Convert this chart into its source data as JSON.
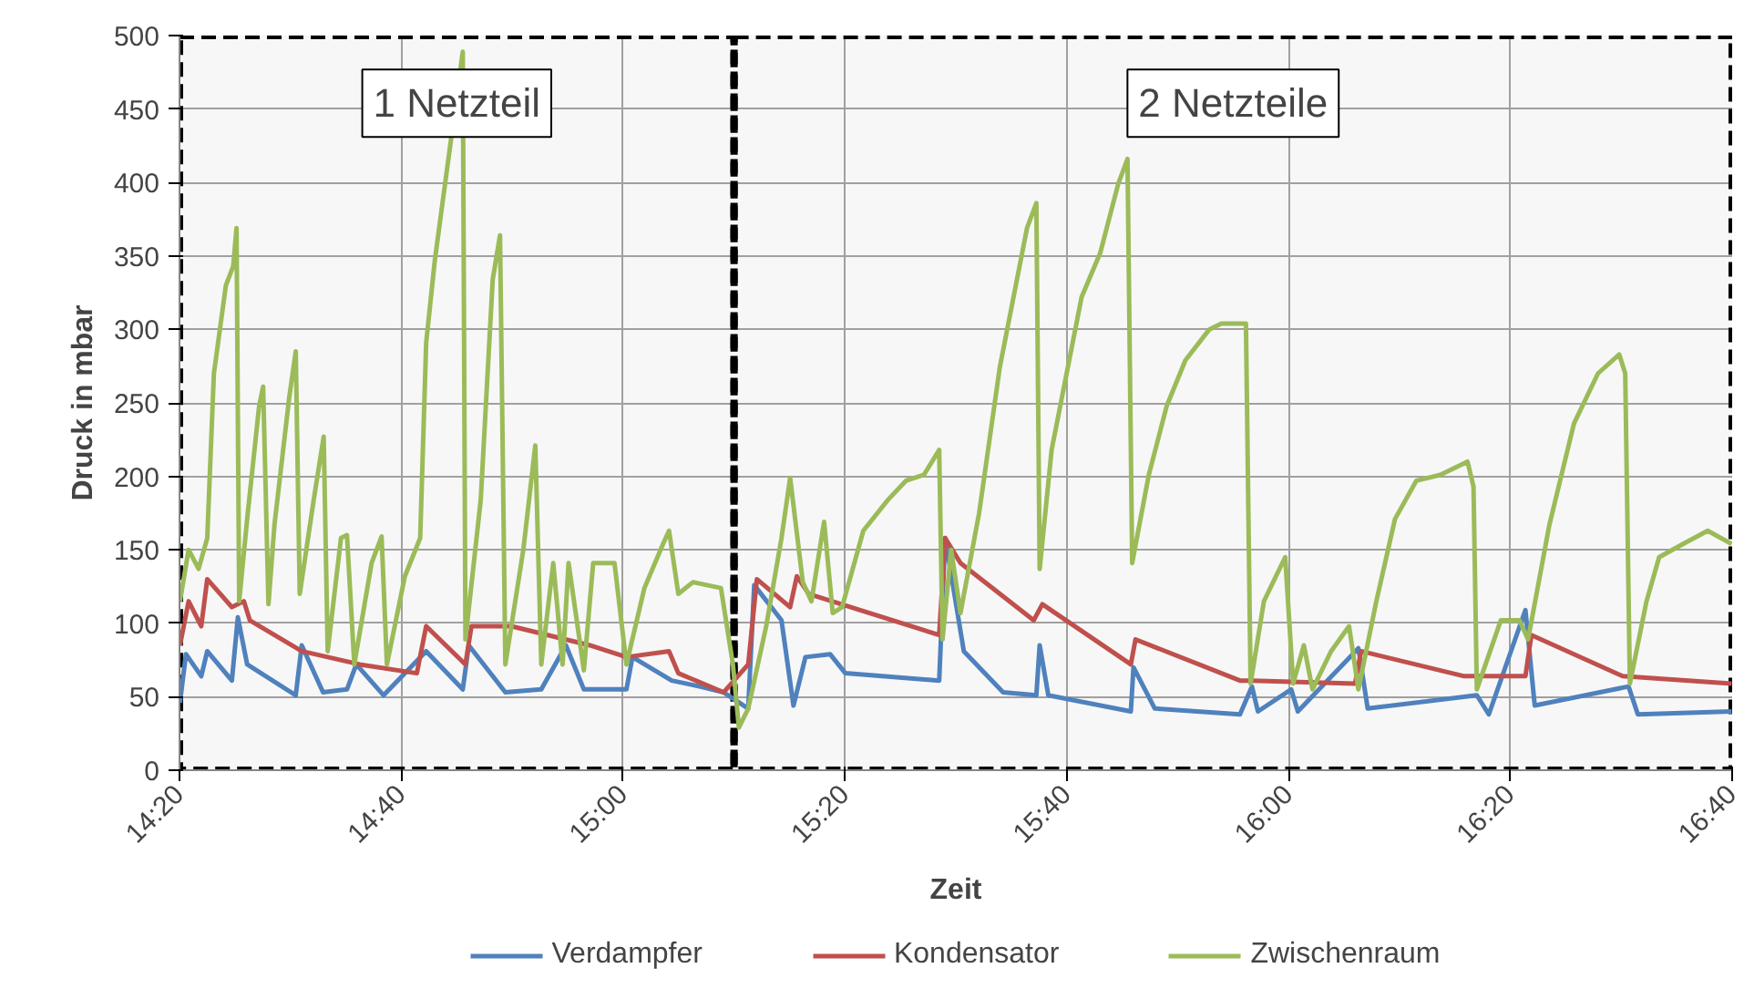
{
  "chart_data": {
    "type": "line",
    "xlabel": "Zeit",
    "ylabel": "Druck in mbar",
    "xlim": [
      14.3333,
      16.6667
    ],
    "xticks": [
      {
        "value": 14.3333,
        "label": "14:20"
      },
      {
        "value": 14.6667,
        "label": "14:40"
      },
      {
        "value": 15,
        "label": "15:00"
      },
      {
        "value": 15.3333,
        "label": "15:20"
      },
      {
        "value": 15.6667,
        "label": "15:40"
      },
      {
        "value": 16,
        "label": "16:00"
      },
      {
        "value": 16.3333,
        "label": "16:20"
      },
      {
        "value": 16.6667,
        "label": "16:40"
      }
    ],
    "ylim": [
      0,
      500
    ],
    "yticks": [
      0,
      50,
      100,
      150,
      200,
      250,
      300,
      350,
      400,
      450,
      500
    ],
    "grid": true,
    "legend": "bottom",
    "line_style": "solid",
    "bands": [
      {
        "axis": "x",
        "from": 14.3333,
        "to": 15.1667,
        "label": "1 Netzteil",
        "color": "#000000"
      },
      {
        "axis": "x",
        "from": 15.1667,
        "to": 16.6667,
        "label": "2 Netzteile",
        "color": "#000000"
      }
    ],
    "series": [
      {
        "name": "Verdampfer",
        "color": "#4f81bd",
        "x": [
          14.334,
          14.343,
          14.366,
          14.375,
          14.412,
          14.421,
          14.435,
          14.508,
          14.517,
          14.549,
          14.585,
          14.599,
          14.64,
          14.704,
          14.759,
          14.768,
          14.823,
          14.877,
          14.914,
          14.941,
          15.005,
          15.014,
          15.073,
          15.115,
          15.151,
          15.188,
          15.197,
          15.238,
          15.256,
          15.274,
          15.311,
          15.334,
          15.475,
          15.484,
          15.512,
          15.571,
          15.621,
          15.626,
          15.639,
          15.763,
          15.767,
          15.799,
          15.927,
          15.945,
          15.954,
          16.004,
          16.014,
          16.105,
          16.119,
          16.283,
          16.301,
          16.356,
          16.37,
          16.511,
          16.525,
          16.666
        ],
        "values": [
          46,
          79,
          64,
          81,
          61,
          104,
          72,
          51,
          85,
          53,
          55,
          72,
          51,
          81,
          55,
          85,
          53,
          55,
          85,
          55,
          55,
          77,
          61,
          57,
          53,
          42,
          126,
          102,
          44,
          77,
          79,
          66,
          61,
          158,
          81,
          53,
          51,
          85,
          51,
          40,
          70,
          42,
          38,
          57,
          40,
          55,
          40,
          83,
          42,
          51,
          38,
          109,
          44,
          57,
          38,
          40
        ]
      },
      {
        "name": "Kondensator",
        "color": "#c0504d",
        "x": [
          14.334,
          14.347,
          14.366,
          14.375,
          14.412,
          14.43,
          14.439,
          14.517,
          14.604,
          14.69,
          14.704,
          14.763,
          14.772,
          14.832,
          14.95,
          15.005,
          15.069,
          15.083,
          15.151,
          15.188,
          15.201,
          15.251,
          15.261,
          15.279,
          15.475,
          15.484,
          15.507,
          15.617,
          15.63,
          15.763,
          15.77,
          15.927,
          15.945,
          16.1,
          16.109,
          16.264,
          16.356,
          16.365,
          16.502,
          16.666
        ],
        "values": [
          85,
          115,
          98,
          130,
          111,
          115,
          102,
          81,
          72,
          66,
          98,
          72,
          98,
          98,
          85,
          77,
          81,
          66,
          53,
          72,
          130,
          111,
          132,
          120,
          92,
          158,
          141,
          102,
          113,
          72,
          89,
          61,
          61,
          59,
          81,
          64,
          64,
          92,
          64,
          59
        ]
      },
      {
        "name": "Zwischenraum",
        "color": "#9bbb59",
        "x": [
          14.334,
          14.347,
          14.362,
          14.375,
          14.385,
          14.403,
          14.414,
          14.419,
          14.423,
          14.435,
          14.453,
          14.459,
          14.467,
          14.476,
          14.498,
          14.508,
          14.514,
          14.535,
          14.55,
          14.556,
          14.576,
          14.585,
          14.596,
          14.622,
          14.637,
          14.645,
          14.672,
          14.695,
          14.704,
          14.717,
          14.759,
          14.763,
          14.786,
          14.804,
          14.815,
          14.823,
          14.85,
          14.868,
          14.877,
          14.895,
          14.909,
          14.918,
          14.941,
          14.955,
          14.987,
          15.005,
          15.032,
          15.06,
          15.069,
          15.083,
          15.105,
          15.147,
          15.165,
          15.174,
          15.188,
          15.215,
          15.238,
          15.251,
          15.27,
          15.283,
          15.302,
          15.315,
          15.329,
          15.361,
          15.398,
          15.425,
          15.452,
          15.475,
          15.48,
          15.493,
          15.507,
          15.535,
          15.566,
          15.607,
          15.621,
          15.626,
          15.644,
          15.689,
          15.717,
          15.744,
          15.758,
          15.765,
          15.79,
          15.817,
          15.845,
          15.881,
          15.899,
          15.936,
          15.943,
          15.963,
          15.995,
          16.007,
          16.023,
          16.036,
          16.064,
          16.091,
          16.105,
          16.132,
          16.16,
          16.192,
          16.228,
          16.269,
          16.278,
          16.283,
          16.319,
          16.347,
          16.36,
          16.392,
          16.429,
          16.465,
          16.497,
          16.506,
          16.513,
          16.538,
          16.557,
          16.593,
          16.63,
          16.666
        ],
        "values": [
          115,
          150,
          137,
          158,
          270,
          330,
          343,
          369,
          115,
          171,
          248,
          261,
          113,
          167,
          253,
          285,
          120,
          184,
          227,
          81,
          158,
          160,
          72,
          141,
          159,
          72,
          132,
          158,
          291,
          347,
          489,
          89,
          184,
          334,
          364,
          72,
          150,
          221,
          72,
          141,
          72,
          141,
          68,
          141,
          141,
          72,
          124,
          154,
          163,
          120,
          128,
          124,
          72,
          29,
          42,
          98,
          158,
          199,
          128,
          115,
          169,
          107,
          111,
          163,
          184,
          197,
          201,
          218,
          89,
          150,
          107,
          175,
          274,
          369,
          386,
          137,
          218,
          322,
          352,
          399,
          416,
          141,
          201,
          248,
          279,
          300,
          304,
          304,
          59,
          115,
          145,
          59,
          85,
          55,
          81,
          98,
          55,
          115,
          171,
          197,
          201,
          210,
          193,
          55,
          102,
          102,
          89,
          167,
          236,
          270,
          283,
          270,
          59,
          115,
          145,
          154,
          163,
          154
        ]
      }
    ]
  }
}
